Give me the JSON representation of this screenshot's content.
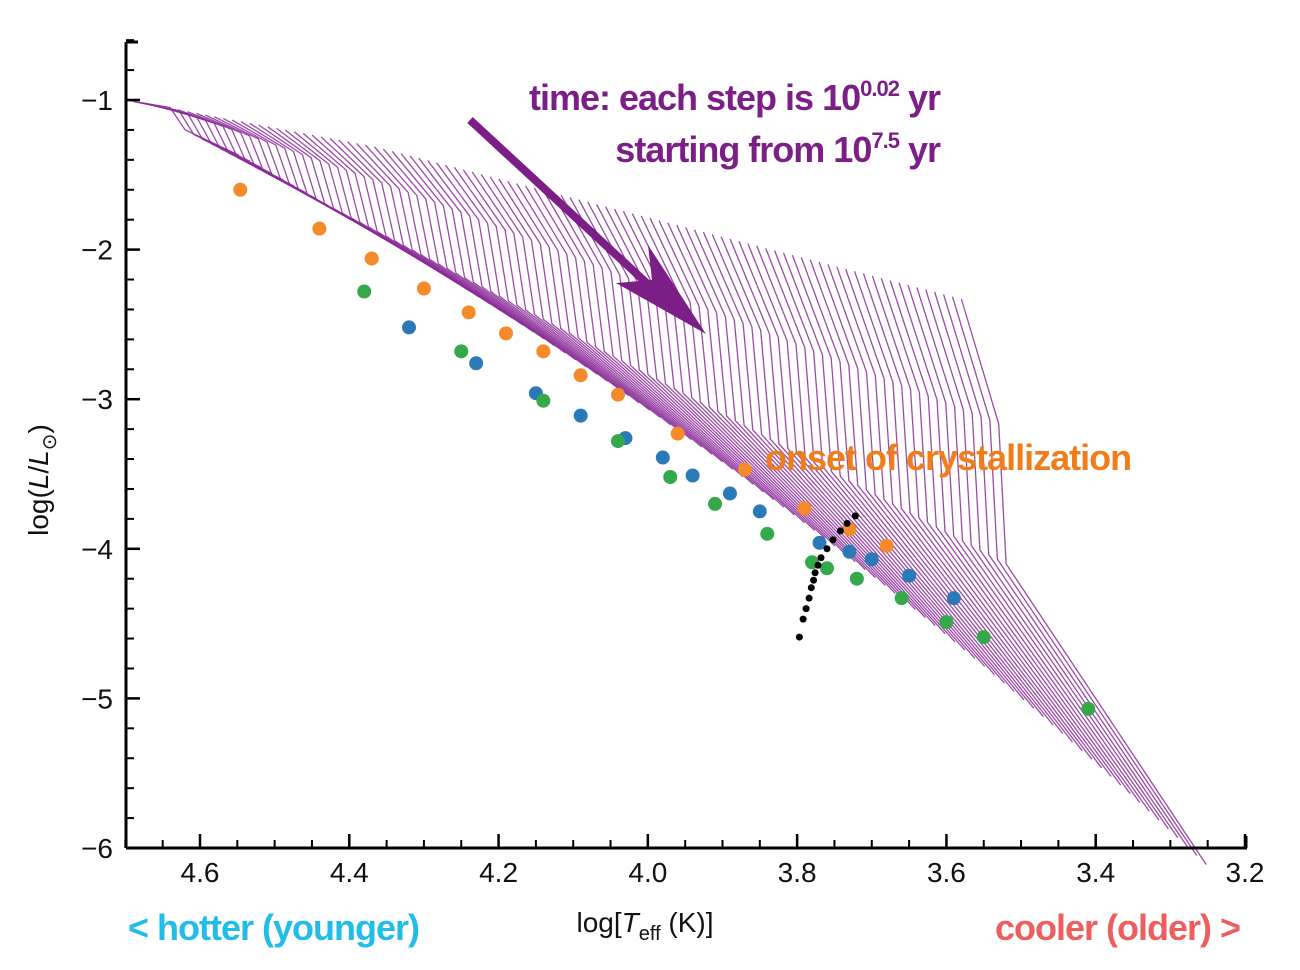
{
  "chart_data": {
    "type": "scatter",
    "title": "",
    "xlabel": "log[T_eff (K)]",
    "xlabel_parts": {
      "pre": "log[",
      "italic": "T",
      "sub": "eff",
      "post": " (K)]"
    },
    "ylabel": "log(L/L⊙)",
    "ylabel_parts": {
      "pre": "log(",
      "italic1": "L",
      "mid": "/",
      "italic2": "L",
      "sub": "⊙",
      "post": ")"
    },
    "xlim": [
      4.7,
      3.2
    ],
    "ylim": [
      -6,
      -0.61
    ],
    "x_inverted": true,
    "x_ticks": [
      4.6,
      4.4,
      4.2,
      4.0,
      3.8,
      3.6,
      3.4,
      3.2
    ],
    "x_tick_labels": [
      "4.6",
      "4.4",
      "4.2",
      "4.0",
      "3.8",
      "3.6",
      "3.4",
      "3.2"
    ],
    "x_minor_step": 0.05,
    "y_ticks": [
      -1,
      -2,
      -3,
      -4,
      -5,
      -6
    ],
    "y_tick_labels": [
      "−1",
      "−2",
      "−3",
      "−4",
      "−5",
      "−6"
    ],
    "y_minor_step": 0.2,
    "grid": false,
    "series": [
      {
        "name": "orange",
        "color": "#f58a2a",
        "points": [
          [
            4.546,
            -1.6
          ],
          [
            4.44,
            -1.86
          ],
          [
            4.37,
            -2.06
          ],
          [
            4.3,
            -2.26
          ],
          [
            4.24,
            -2.42
          ],
          [
            4.19,
            -2.56
          ],
          [
            4.14,
            -2.68
          ],
          [
            4.09,
            -2.84
          ],
          [
            4.04,
            -2.97
          ],
          [
            3.96,
            -3.23
          ],
          [
            3.87,
            -3.47
          ],
          [
            3.79,
            -3.73
          ],
          [
            3.73,
            -3.87
          ],
          [
            3.68,
            -3.98
          ]
        ]
      },
      {
        "name": "blue",
        "color": "#2a7ab8",
        "points": [
          [
            4.32,
            -2.52
          ],
          [
            4.23,
            -2.76
          ],
          [
            4.15,
            -2.96
          ],
          [
            4.09,
            -3.11
          ],
          [
            4.03,
            -3.26
          ],
          [
            3.98,
            -3.39
          ],
          [
            3.94,
            -3.51
          ],
          [
            3.89,
            -3.63
          ],
          [
            3.85,
            -3.75
          ],
          [
            3.77,
            -3.96
          ],
          [
            3.73,
            -4.02
          ],
          [
            3.7,
            -4.07
          ],
          [
            3.65,
            -4.18
          ],
          [
            3.59,
            -4.33
          ]
        ]
      },
      {
        "name": "green",
        "color": "#34a84a",
        "points": [
          [
            4.38,
            -2.28
          ],
          [
            4.25,
            -2.68
          ],
          [
            4.14,
            -3.01
          ],
          [
            4.04,
            -3.28
          ],
          [
            3.97,
            -3.52
          ],
          [
            3.91,
            -3.7
          ],
          [
            3.84,
            -3.9
          ],
          [
            3.78,
            -4.09
          ],
          [
            3.76,
            -4.13
          ],
          [
            3.72,
            -4.2
          ],
          [
            3.66,
            -4.33
          ],
          [
            3.6,
            -4.49
          ],
          [
            3.55,
            -4.59
          ],
          [
            3.41,
            -5.07
          ]
        ]
      },
      {
        "name": "crystallization-onset",
        "color": "#000000",
        "points": [
          [
            3.722,
            -3.78
          ],
          [
            3.733,
            -3.83
          ],
          [
            3.742,
            -3.88
          ],
          [
            3.752,
            -3.94
          ],
          [
            3.76,
            -4.0
          ],
          [
            3.768,
            -4.06
          ],
          [
            3.772,
            -4.11
          ],
          [
            3.776,
            -4.16
          ],
          [
            3.778,
            -4.21
          ],
          [
            3.781,
            -4.26
          ],
          [
            3.784,
            -4.33
          ],
          [
            3.788,
            -4.4
          ],
          [
            3.792,
            -4.47
          ],
          [
            3.797,
            -4.59
          ]
        ]
      }
    ],
    "tracks": {
      "description": "Cooling-track curves, one per time step (10^0.02 yr steps starting from 10^7.5 yr)",
      "color": "#8a2a98",
      "count": 95
    },
    "annotations": [
      {
        "id": "time",
        "lines": [
          {
            "text": "time: each step is 10",
            "sup": "0.02",
            "tail": " yr"
          },
          {
            "text": "starting from 10",
            "sup": "7.5",
            "tail": " yr"
          }
        ],
        "color": "#7b1f86",
        "position": "top-center"
      },
      {
        "id": "onset",
        "text": "onset of crystallization",
        "color": "#f07d1c",
        "position": "center-right"
      },
      {
        "id": "hotter",
        "text": "< hotter (younger)",
        "color": "#1fbde8",
        "position": "bottom-left"
      },
      {
        "id": "cooler",
        "text": "cooler (older) >",
        "color": "#ee5e5e",
        "position": "bottom-right"
      }
    ],
    "arrow": {
      "color": "#7b1f86",
      "direction": "down-right",
      "meaning": "time"
    }
  }
}
